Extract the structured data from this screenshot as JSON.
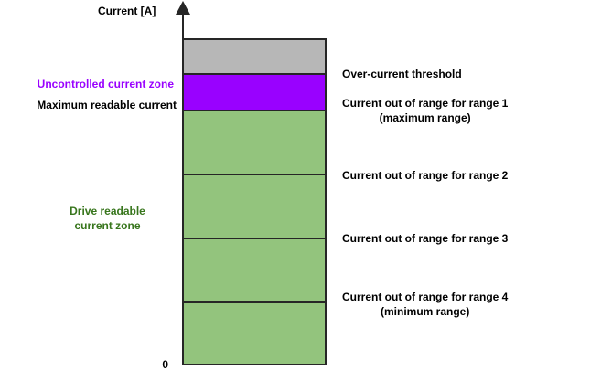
{
  "diagram": {
    "axis_title": "Current [A]",
    "origin_label": "0",
    "colors": {
      "over_current_zone": "#b7b7b7",
      "uncontrolled_zone": "#9901ff",
      "readable_zone": "#93c47d",
      "ink": "#262626",
      "uncontrolled_label": "#9901ff",
      "readable_label": "#38761d"
    },
    "left_labels": {
      "uncontrolled": "Uncontrolled current zone",
      "max_readable": "Maximum readable current",
      "drive_readable_line1": "Drive readable",
      "drive_readable_line2": "current zone"
    },
    "right_labels": [
      {
        "text": "Over-current threshold",
        "sub": ""
      },
      {
        "text": "Current out of range for range 1",
        "sub": "(maximum range)"
      },
      {
        "text": "Current out of range for range 2",
        "sub": ""
      },
      {
        "text": "Current out of range for range 3",
        "sub": ""
      },
      {
        "text": "Current out of range for range 4",
        "sub": "(minimum range)"
      }
    ]
  }
}
